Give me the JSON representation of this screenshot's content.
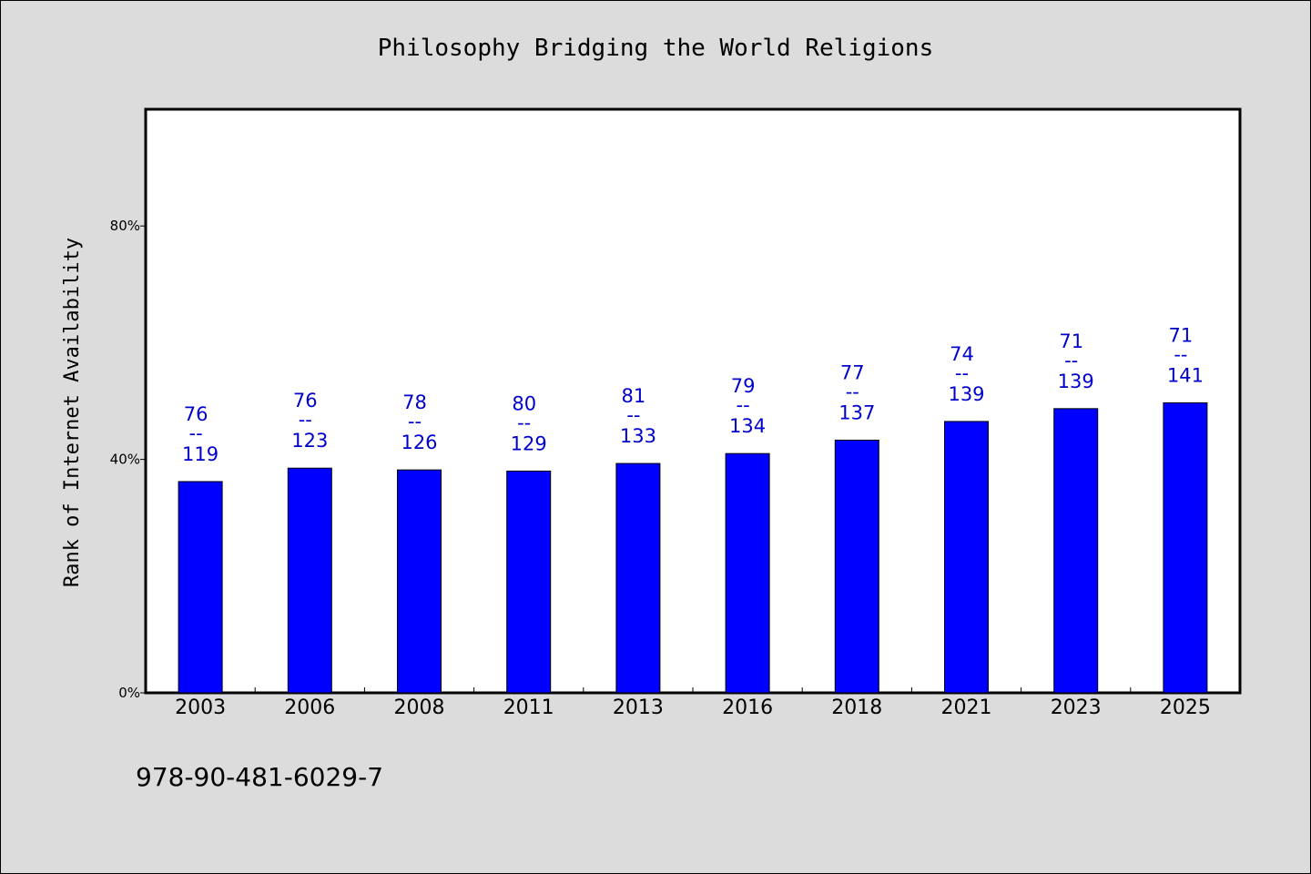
{
  "chart_data": {
    "type": "bar",
    "title": "Philosophy Bridging the World Religions",
    "xlabel": "",
    "ylabel": "Rank of Internet Availability",
    "ylim": [
      0,
      100
    ],
    "yticks": [
      0,
      40,
      80
    ],
    "ytick_labels": [
      "0%",
      "40%",
      "80%"
    ],
    "categories": [
      "2003",
      "2006",
      "2008",
      "2011",
      "2013",
      "2016",
      "2018",
      "2021",
      "2023",
      "2025"
    ],
    "values": [
      36.2,
      38.5,
      38.2,
      38.0,
      39.3,
      41.0,
      43.3,
      46.5,
      48.7,
      49.7
    ],
    "annotations": [
      {
        "top": "76",
        "bottom": "119"
      },
      {
        "top": "76",
        "bottom": "123"
      },
      {
        "top": "78",
        "bottom": "126"
      },
      {
        "top": "80",
        "bottom": "129"
      },
      {
        "top": "81",
        "bottom": "133"
      },
      {
        "top": "79",
        "bottom": "134"
      },
      {
        "top": "77",
        "bottom": "137"
      },
      {
        "top": "74",
        "bottom": "139"
      },
      {
        "top": "71",
        "bottom": "139"
      },
      {
        "top": "71",
        "bottom": "141"
      }
    ],
    "annotation_separator": "--",
    "bar_color": "#0000ff",
    "label_color": "#0000cc",
    "plot_background": "#ffffff",
    "page_background": "#dcdcdc",
    "grid": false,
    "legend": "none"
  },
  "footer": {
    "isbn": "978-90-481-6029-7"
  }
}
